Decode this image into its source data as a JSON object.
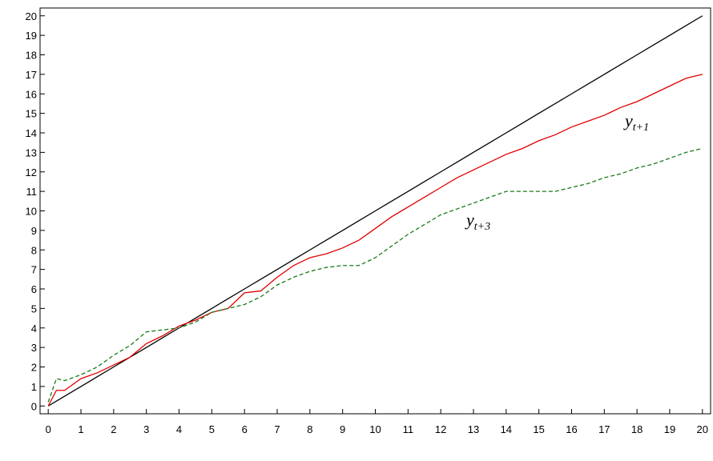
{
  "chart_data": {
    "type": "line",
    "x": [
      0,
      0.25,
      0.5,
      1,
      1.5,
      2,
      2.5,
      3,
      3.5,
      4,
      4.5,
      5,
      5.5,
      6,
      6.5,
      7,
      7.5,
      8,
      8.5,
      9,
      9.5,
      10,
      10.5,
      11,
      11.5,
      12,
      12.5,
      13,
      13.5,
      14,
      14.5,
      15,
      15.5,
      16,
      16.5,
      17,
      17.5,
      18,
      18.5,
      19,
      19.5,
      20
    ],
    "series": [
      {
        "color": "#000000",
        "dash": false,
        "values": [
          0,
          0.25,
          0.5,
          1,
          1.5,
          2,
          2.5,
          3,
          3.5,
          4,
          4.5,
          5,
          5.5,
          6,
          6.5,
          7,
          7.5,
          8,
          8.5,
          9,
          9.5,
          10,
          10.5,
          11,
          11.5,
          12,
          12.5,
          13,
          13.5,
          14,
          14.5,
          15,
          15.5,
          16,
          16.5,
          17,
          17.5,
          18,
          18.5,
          19,
          19.5,
          20
        ]
      },
      {
        "color": "#e00000",
        "dash": false,
        "values": [
          0,
          0.8,
          0.8,
          1.4,
          1.7,
          2.1,
          2.5,
          3.2,
          3.6,
          4.1,
          4.4,
          4.8,
          5.0,
          5.8,
          5.9,
          6.6,
          7.2,
          7.6,
          7.8,
          8.1,
          8.5,
          9.1,
          9.7,
          10.2,
          10.7,
          11.2,
          11.7,
          12.1,
          12.5,
          12.9,
          13.2,
          13.6,
          13.9,
          14.3,
          14.6,
          14.9,
          15.3,
          15.6,
          16.0,
          16.4,
          16.8,
          17.0
        ]
      },
      {
        "color": "#1a7a1a",
        "dash": true,
        "values": [
          0.2,
          1.4,
          1.3,
          1.6,
          2.0,
          2.6,
          3.1,
          3.8,
          3.9,
          4.0,
          4.3,
          4.8,
          5.0,
          5.2,
          5.6,
          6.2,
          6.6,
          6.9,
          7.1,
          7.2,
          7.2,
          7.6,
          8.2,
          8.8,
          9.3,
          9.8,
          10.1,
          10.4,
          10.7,
          11.0,
          11.0,
          11.0,
          11.0,
          11.2,
          11.4,
          11.7,
          11.9,
          12.2,
          12.4,
          12.7,
          13.0,
          13.2
        ]
      }
    ],
    "annotations": [
      {
        "text": "y",
        "subscript": "t+1"
      },
      {
        "text": "y",
        "subscript": "t+3"
      }
    ],
    "xlim": [
      -0.25,
      20.25
    ],
    "ylim": [
      -0.4,
      20.4
    ],
    "xticks": [
      0,
      1,
      2,
      3,
      4,
      5,
      6,
      7,
      8,
      9,
      10,
      11,
      12,
      13,
      14,
      15,
      16,
      17,
      18,
      19,
      20
    ],
    "yticks": [
      0,
      1,
      2,
      3,
      4,
      5,
      6,
      7,
      8,
      9,
      10,
      11,
      12,
      13,
      14,
      15,
      16,
      17,
      18,
      19,
      20
    ],
    "grid": false
  }
}
